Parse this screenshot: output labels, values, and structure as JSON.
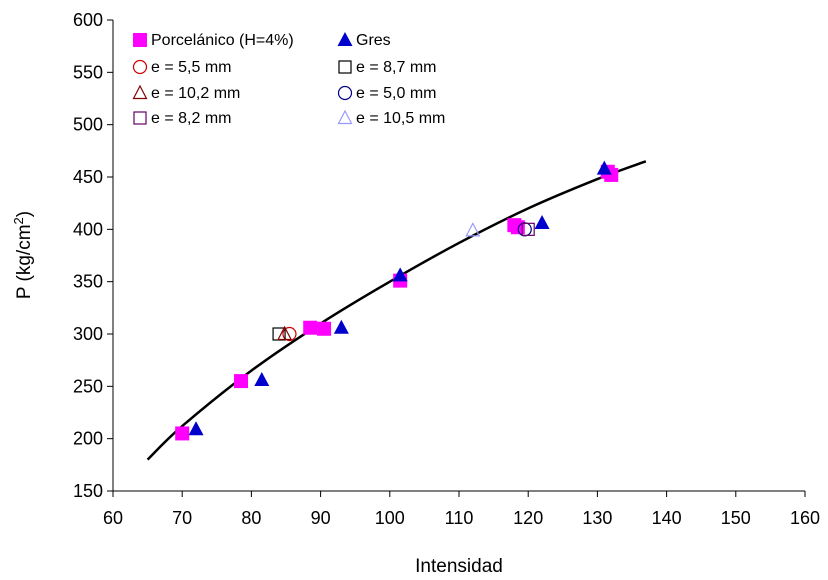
{
  "chart_data": {
    "type": "scatter",
    "xlabel": "Intensidad",
    "ylabel_main": "P (kg/cm",
    "ylabel_sup": "2",
    "ylabel_close": ")",
    "xlim": [
      60,
      160
    ],
    "ylim": [
      150,
      600
    ],
    "xticks": [
      60,
      70,
      80,
      90,
      100,
      110,
      120,
      130,
      140,
      150,
      160
    ],
    "yticks": [
      150,
      200,
      250,
      300,
      350,
      400,
      450,
      500,
      550,
      600
    ],
    "grid": false,
    "legend_position": "top-left",
    "series": [
      {
        "name": "Porcelánico (H=4%)",
        "marker": "square-filled",
        "color": "#ff00ff",
        "points": [
          [
            70,
            205
          ],
          [
            78.5,
            255
          ],
          [
            88.5,
            306
          ],
          [
            90.5,
            305
          ],
          [
            101.5,
            351
          ],
          [
            118,
            404
          ],
          [
            118.5,
            402
          ],
          [
            131.5,
            455
          ],
          [
            132,
            452
          ]
        ]
      },
      {
        "name": "Gres",
        "marker": "triangle-filled",
        "color": "#0000cc",
        "points": [
          [
            72,
            209
          ],
          [
            81.5,
            256
          ],
          [
            93,
            306
          ],
          [
            101.5,
            356
          ],
          [
            122,
            406
          ],
          [
            131,
            458
          ]
        ]
      },
      {
        "name": "e = 5,5 mm",
        "marker": "circle-open",
        "color": "#cc0000",
        "points": [
          [
            85.5,
            300
          ]
        ]
      },
      {
        "name": "e = 8,7 mm",
        "marker": "square-open",
        "color": "#000000",
        "points": [
          [
            84,
            300
          ]
        ]
      },
      {
        "name": "e = 10,2 mm",
        "marker": "triangle-open",
        "color": "#800000",
        "points": [
          [
            84.8,
            300
          ]
        ]
      },
      {
        "name": "e = 5,0 mm",
        "marker": "circle-open",
        "color": "#000080",
        "points": [
          [
            119.5,
            400
          ]
        ]
      },
      {
        "name": "e = 8,2 mm",
        "marker": "square-open",
        "color": "#660066",
        "points": [
          [
            120,
            400
          ]
        ]
      },
      {
        "name": "e = 10,5 mm",
        "marker": "triangle-open",
        "color": "#9999ff",
        "points": [
          [
            112,
            399
          ]
        ]
      }
    ],
    "trendline": {
      "color": "#000000",
      "points": [
        [
          65,
          180
        ],
        [
          70,
          212
        ],
        [
          80,
          265
        ],
        [
          90,
          310
        ],
        [
          100,
          350
        ],
        [
          110,
          387
        ],
        [
          120,
          420
        ],
        [
          130,
          448
        ],
        [
          137,
          465
        ]
      ]
    }
  }
}
